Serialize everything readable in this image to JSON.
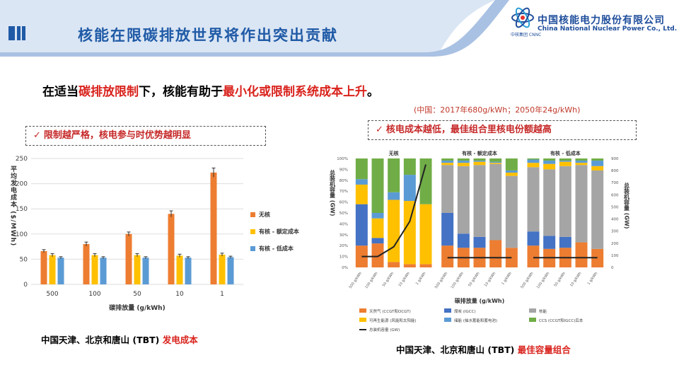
{
  "header": {
    "title": "核能在限碳排放世界将作出突出贡献",
    "logo": {
      "name_cn": "中国核能电力股份有限公司",
      "name_en": "China National Nuclear Power Co., Ltd.",
      "sub": "中核集团 CNNC"
    },
    "colors": {
      "accent": "#1f5aa6",
      "band": "#dbe6f4"
    }
  },
  "headline": {
    "pre": "在适当",
    "red1": "碳排放限制",
    "mid": "下，核能有助于",
    "red2": "最小化或限制系统成本上升",
    "post": "。"
  },
  "note": "(中国：2017年680g/kWh；2050年24g/kWh)",
  "callouts": {
    "left": {
      "text": "限制越严格，核电参与时优势越明显",
      "icon": "check-icon"
    },
    "right": {
      "text": "核电成本越低，最佳组合里核电份额越高",
      "icon": "check-icon"
    }
  },
  "captions": {
    "left": {
      "black": "中国天津、北京和唐山 (TBT) ",
      "red": "发电成本"
    },
    "right": {
      "black": "中国天津、北京和唐山 (TBT) ",
      "red": "最佳容量组合"
    }
  },
  "chart_data": [
    {
      "type": "bar",
      "ylabel": "平均发电成本 ($/MWh)",
      "xlabel": "碳排放量 (g/kWh)",
      "categories": [
        "500",
        "100",
        "50",
        "10",
        "1"
      ],
      "ylim": [
        0,
        250
      ],
      "yticks": [
        0,
        50,
        100,
        150,
        200,
        250
      ],
      "grid": true,
      "legend": "right",
      "series": [
        {
          "name": "无核",
          "color": "#ed7d31",
          "values": [
            66,
            80,
            100,
            140,
            222
          ],
          "errors": [
            3,
            4,
            4,
            6,
            9
          ]
        },
        {
          "name": "有核 - 额定成本",
          "color": "#ffc000",
          "values": [
            58,
            58,
            58,
            57,
            59
          ],
          "errors": [
            3,
            3,
            3,
            3,
            3
          ]
        },
        {
          "name": "有核 - 低成本",
          "color": "#5b9bd5",
          "values": [
            53,
            53,
            53,
            53,
            54
          ],
          "errors": [
            2,
            2,
            2,
            2,
            2
          ]
        }
      ]
    },
    {
      "type": "bar",
      "stacked": true,
      "xlabel": "碳排放量 (g/kWh)",
      "ylabel_right": "总装机容量 (GW)",
      "ylim": [
        0,
        100
      ],
      "ylim_right": [
        0,
        900
      ],
      "yticks_left": [
        "0%",
        "10%",
        "20%",
        "30%",
        "40%",
        "50%",
        "60%",
        "70%",
        "80%",
        "90%",
        "100%"
      ],
      "yticks_right": [
        0,
        100,
        200,
        300,
        400,
        500,
        600,
        700,
        800,
        900
      ],
      "panels": [
        "无核",
        "有核 - 额定成本",
        "有核 - 低成本"
      ],
      "categories": [
        "500 g/kWh",
        "100 g/kWh",
        "50 g/kWh",
        "10 g/kWh",
        "1 g/kWh"
      ],
      "stack_order": [
        "天然气 (CCGT和OCGT)",
        "煤炭 (IGCC)",
        "核能",
        "可再生能源 (风能和太阳能)",
        "储能 (抽水蓄能和蓄电池)",
        "CCS (CCGT和IGCC)后本",
        "总装机容量 (GW)"
      ],
      "stack_colors": [
        "#ed7d31",
        "#4472c4",
        "#a5a5a5",
        "#ffc000",
        "#5b9bd5",
        "#70ad47",
        "#222222"
      ],
      "bars": [
        [
          [
            20,
            38,
            0,
            18,
            5,
            19
          ],
          [
            22,
            5,
            0,
            18,
            5,
            50
          ],
          [
            5,
            0,
            0,
            57,
            7,
            31
          ],
          [
            3,
            0,
            0,
            58,
            24,
            15
          ],
          [
            3,
            0,
            0,
            55,
            0,
            42
          ]
        ],
        [
          [
            20,
            30,
            44,
            2,
            2,
            2
          ],
          [
            18,
            13,
            62,
            3,
            2,
            2
          ],
          [
            18,
            10,
            66,
            3,
            1,
            2
          ],
          [
            25,
            0,
            70,
            1,
            1,
            3
          ],
          [
            18,
            0,
            66,
            3,
            2,
            11
          ]
        ],
        [
          [
            20,
            13,
            59,
            4,
            3,
            1
          ],
          [
            17,
            12,
            61,
            5,
            3,
            2
          ],
          [
            18,
            10,
            65,
            4,
            1,
            2
          ],
          [
            23,
            0,
            71,
            2,
            2,
            2
          ],
          [
            17,
            0,
            72,
            4,
            5,
            2
          ]
        ]
      ],
      "total_capacity_gw": [
        [
          90,
          90,
          170,
          380,
          850
        ],
        [
          80,
          80,
          80,
          80,
          80
        ],
        [
          80,
          80,
          80,
          80,
          80
        ]
      ]
    }
  ]
}
